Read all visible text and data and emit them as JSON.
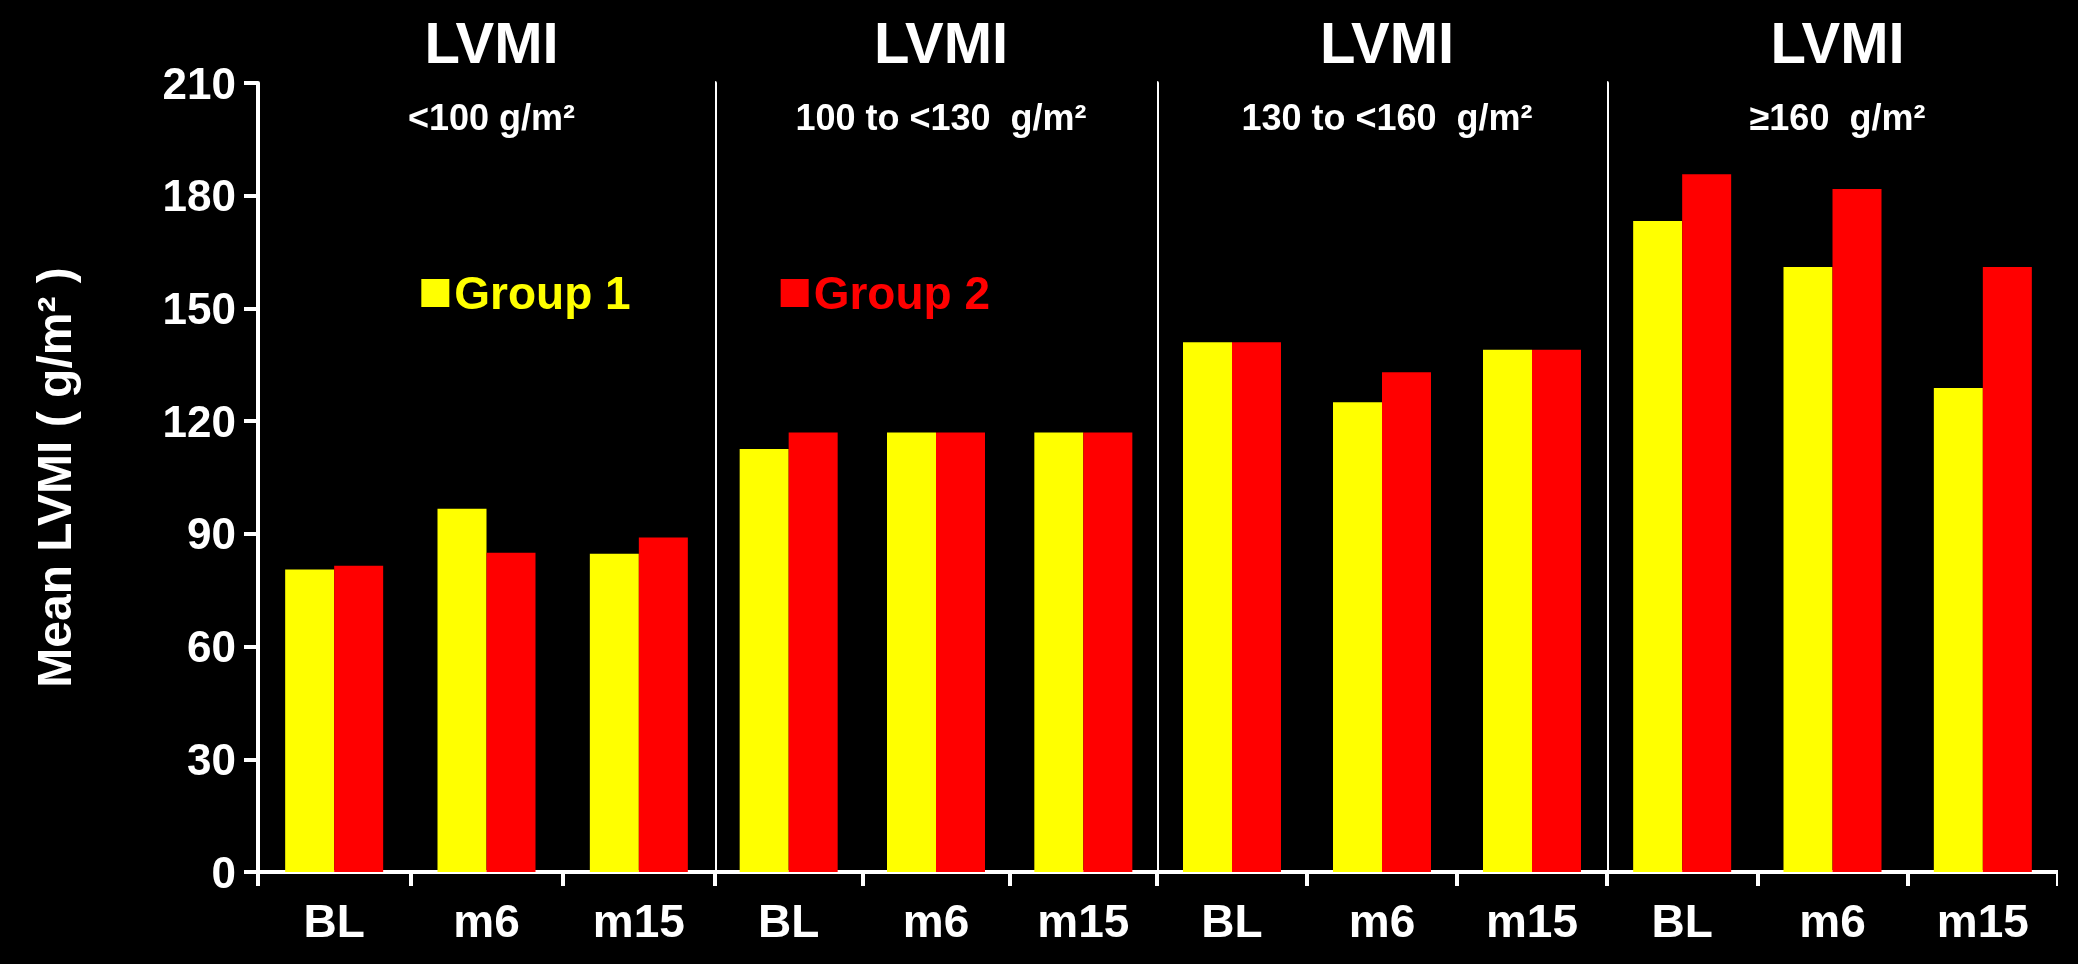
{
  "chart_data": [
    {
      "type": "bar",
      "title": "LVMI",
      "subtitle": "<100 g/m²",
      "ylabel": "Mean LVMI ( g/m² )",
      "categories": [
        "BL",
        "m6",
        "m15"
      ],
      "series": [
        {
          "name": "Group 1",
          "color": "#ffff00",
          "values": [
            80.5,
            96.7,
            84.7
          ]
        },
        {
          "name": "Group 2",
          "color": "#ff0000",
          "values": [
            81.5,
            85,
            89
          ]
        }
      ],
      "ylim": [
        0,
        210
      ],
      "yticks": [
        0,
        30,
        60,
        90,
        120,
        150,
        180,
        210
      ],
      "legend": "top right"
    },
    {
      "type": "bar",
      "title": "LVMI",
      "subtitle": "100 to <130  g/m²",
      "categories": [
        "BL",
        "m6",
        "m15"
      ],
      "series": [
        {
          "color": "#ffff00",
          "values": [
            112.6,
            117,
            117
          ]
        },
        {
          "color": "#ff0000",
          "values": [
            117,
            117,
            117
          ]
        }
      ],
      "ylim": [
        0,
        210
      ],
      "yticks": [
        0,
        30,
        60,
        90,
        120,
        150,
        180,
        210
      ],
      "tick_labels": "x"
    },
    {
      "type": "bar",
      "title": "LVMI",
      "subtitle": "130 to <160  g/m²",
      "categories": [
        "BL",
        "m6",
        "m15"
      ],
      "series": [
        {
          "color": "#ffff00",
          "values": [
            141,
            125,
            139
          ]
        },
        {
          "color": "#ff0000",
          "values": [
            141,
            133,
            139
          ]
        }
      ],
      "ylim": [
        0,
        210
      ],
      "yticks": [
        0,
        30,
        60,
        90,
        120,
        150,
        180,
        210
      ],
      "tick_labels": "x"
    },
    {
      "type": "bar",
      "title": "LVMI",
      "subtitle": "≥160  g/m²",
      "categories": [
        "BL",
        "m6",
        "m15"
      ],
      "series": [
        {
          "color": "#ffff00",
          "values": [
            173.3,
            161,
            128.8
          ]
        },
        {
          "color": "#ff0000",
          "values": [
            185.7,
            181.8,
            161
          ]
        }
      ],
      "ylim": [
        0,
        210
      ],
      "yticks": [
        0,
        30,
        60,
        90,
        120,
        150,
        180,
        210
      ],
      "tick_labels": "x"
    }
  ]
}
